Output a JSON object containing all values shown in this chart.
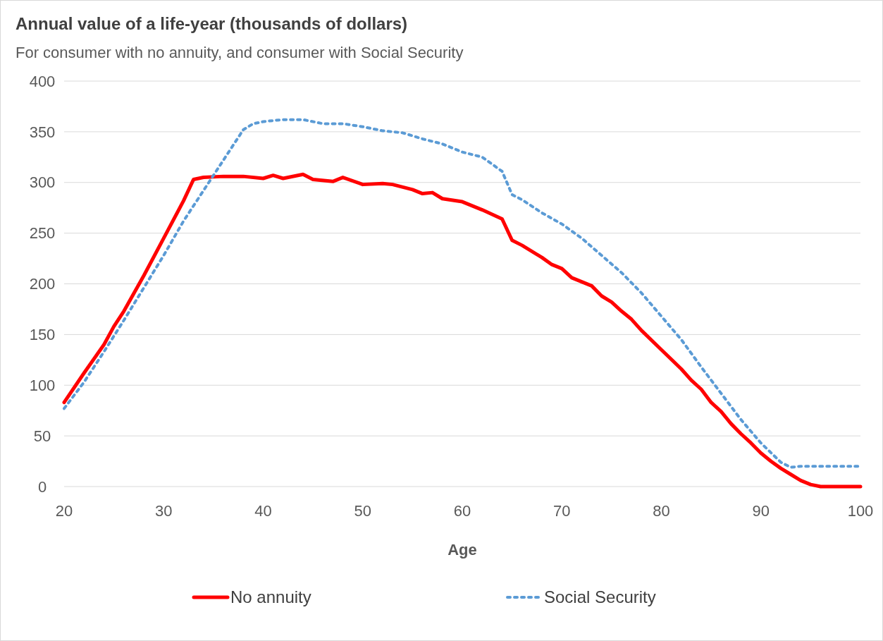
{
  "chart_data": {
    "type": "line",
    "title": "Annual value of a life-year (thousands of dollars)",
    "subtitle": "For consumer with no annuity, and consumer with Social Security",
    "xlabel": "Age",
    "xlim": [
      20,
      100
    ],
    "xticks": [
      20,
      30,
      40,
      50,
      60,
      70,
      80,
      90,
      100
    ],
    "ylim": [
      0,
      400
    ],
    "yticks": [
      0,
      50,
      100,
      150,
      200,
      250,
      300,
      350,
      400
    ],
    "grid": "y",
    "legend": "bottom",
    "series": [
      {
        "name": "No annuity",
        "color": "#ff0000",
        "line_style": "solid",
        "x": [
          20,
          22,
          24,
          25,
          26,
          28,
          30,
          32,
          33,
          34,
          36,
          38,
          40,
          41,
          42,
          44,
          45,
          47,
          48,
          50,
          52,
          53,
          55,
          56,
          57,
          58,
          60,
          62,
          64,
          65,
          66,
          68,
          69,
          70,
          71,
          73,
          74,
          75,
          76,
          77,
          78,
          80,
          82,
          83,
          84,
          85,
          86,
          87,
          88,
          89,
          90,
          91,
          92,
          93,
          94,
          95,
          96,
          100
        ],
        "values": [
          83,
          112,
          140,
          158,
          173,
          208,
          245,
          282,
          303,
          305,
          306,
          306,
          304,
          307,
          304,
          308,
          303,
          301,
          305,
          298,
          299,
          298,
          293,
          289,
          290,
          284,
          281,
          273,
          264,
          243,
          238,
          226,
          219,
          215,
          206,
          198,
          188,
          182,
          173,
          165,
          154,
          135,
          116,
          105,
          96,
          83,
          74,
          62,
          52,
          43,
          33,
          25,
          18,
          12,
          6,
          2,
          0,
          0
        ]
      },
      {
        "name": "Social Security",
        "color": "#5b9bd5",
        "line_style": "dotted",
        "x": [
          20,
          22,
          24,
          26,
          28,
          30,
          32,
          34,
          36,
          38,
          39,
          40,
          42,
          44,
          46,
          48,
          50,
          52,
          54,
          56,
          58,
          60,
          62,
          64,
          65,
          66,
          68,
          70,
          72,
          74,
          76,
          78,
          80,
          82,
          84,
          86,
          88,
          90,
          92,
          93,
          94,
          100
        ],
        "values": [
          77,
          103,
          133,
          164,
          196,
          228,
          262,
          292,
          322,
          352,
          358,
          360,
          362,
          362,
          358,
          358,
          355,
          351,
          349,
          343,
          338,
          330,
          325,
          311,
          288,
          283,
          270,
          259,
          245,
          228,
          211,
          191,
          168,
          145,
          118,
          92,
          66,
          43,
          24,
          19,
          20,
          20
        ]
      }
    ]
  }
}
